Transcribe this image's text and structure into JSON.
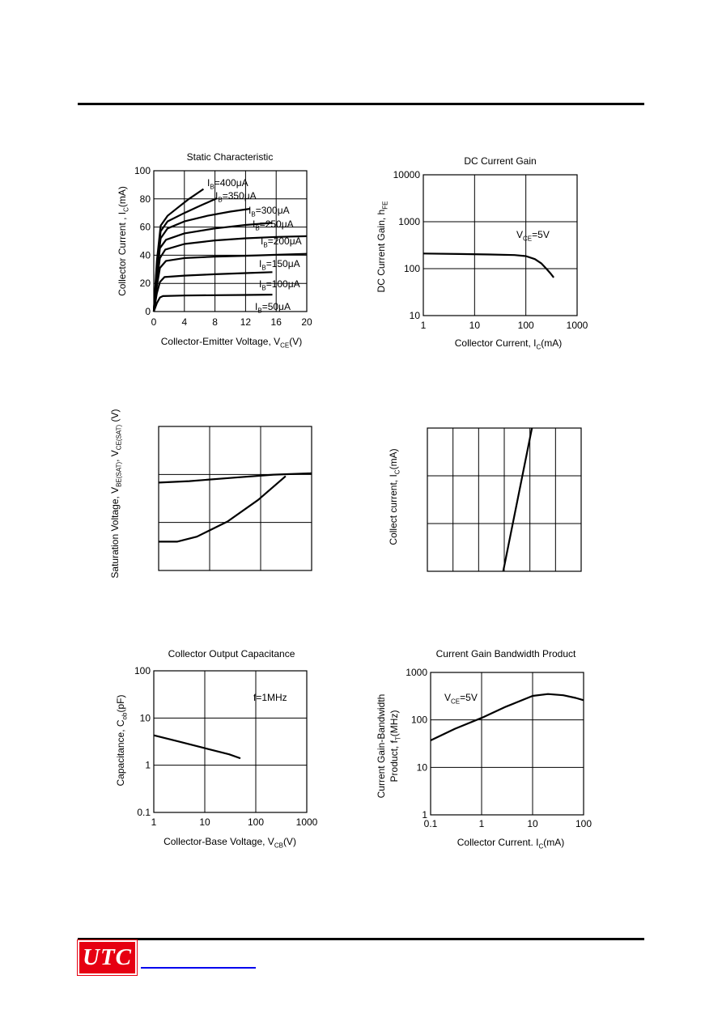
{
  "logo": {
    "text": "UTC"
  },
  "chart_data": [
    {
      "id": "static",
      "type": "line",
      "title": "Static Characteristic",
      "xlabel": "Collector-Emitter Voltage, V",
      "xlabel_sub": "CE",
      "xlabel_tail": "(V)",
      "ylabel": "Collector Current , I",
      "ylabel_sub": "C",
      "ylabel_tail": "(mA)",
      "xlim": [
        0,
        20
      ],
      "ylim": [
        0,
        100
      ],
      "x_ticks": [
        0,
        4,
        8,
        12,
        16,
        20
      ],
      "y_ticks": [
        0,
        20,
        40,
        60,
        80,
        100
      ],
      "grid": true,
      "series": [
        {
          "name": "I_B=50μA",
          "label_main": "I",
          "label_sub": "B",
          "label_tail": "=50μA",
          "points": [
            [
              0,
              0
            ],
            [
              0.4,
              6
            ],
            [
              0.8,
              10
            ],
            [
              1.2,
              11
            ],
            [
              4,
              11.4
            ],
            [
              8,
              11.6
            ],
            [
              12,
              11.8
            ],
            [
              15.5,
              12
            ]
          ]
        },
        {
          "name": "I_B=100μA",
          "label_main": "I",
          "label_sub": "B",
          "label_tail": "=100μA",
          "points": [
            [
              0,
              0
            ],
            [
              0.4,
              13
            ],
            [
              0.8,
              21
            ],
            [
              1.4,
              24.5
            ],
            [
              4,
              25.5
            ],
            [
              8,
              26.5
            ],
            [
              12,
              27.3
            ],
            [
              15.5,
              28
            ]
          ]
        },
        {
          "name": "I_B=150μA",
          "label_main": "I",
          "label_sub": "B",
          "label_tail": "=150μA",
          "points": [
            [
              0,
              0
            ],
            [
              0.4,
              18
            ],
            [
              0.8,
              31
            ],
            [
              1.6,
              36
            ],
            [
              4,
              38
            ],
            [
              8,
              39
            ],
            [
              12,
              39.6
            ],
            [
              16,
              40.3
            ],
            [
              20,
              41
            ]
          ]
        },
        {
          "name": "I_B=200μA",
          "label_main": "I",
          "label_sub": "B",
          "label_tail": "=200μA",
          "points": [
            [
              0,
              0
            ],
            [
              0.4,
              22
            ],
            [
              0.8,
              38
            ],
            [
              1.5,
              44
            ],
            [
              4,
              48
            ],
            [
              8,
              50.5
            ],
            [
              12,
              52
            ],
            [
              16,
              53
            ],
            [
              20,
              53.5
            ]
          ]
        },
        {
          "name": "I_B=250μA",
          "label_main": "I",
          "label_sub": "B",
          "label_tail": "=250μA",
          "points": [
            [
              0,
              0
            ],
            [
              0.4,
              26
            ],
            [
              0.8,
              45
            ],
            [
              1.6,
              51
            ],
            [
              4,
              55.5
            ],
            [
              8,
              59
            ],
            [
              12,
              61.5
            ],
            [
              15.5,
              63
            ]
          ]
        },
        {
          "name": "I_B=300μA",
          "label_main": "I",
          "label_sub": "B",
          "label_tail": "=300μA",
          "points": [
            [
              0,
              0
            ],
            [
              0.4,
              30
            ],
            [
              0.9,
              52
            ],
            [
              1.8,
              59
            ],
            [
              4,
              64
            ],
            [
              7,
              68
            ],
            [
              10,
              71
            ],
            [
              12.6,
              73
            ]
          ]
        },
        {
          "name": "I_B=350μA",
          "label_main": "I",
          "label_sub": "B",
          "label_tail": "=350μA",
          "points": [
            [
              0,
              0
            ],
            [
              0.4,
              33
            ],
            [
              0.9,
              57
            ],
            [
              1.8,
              64
            ],
            [
              4,
              70
            ],
            [
              6,
              75
            ],
            [
              8.3,
              80.5
            ]
          ]
        },
        {
          "name": "I_B=400μA",
          "label_main": "I",
          "label_sub": "B",
          "label_tail": "=400μA",
          "points": [
            [
              0,
              0
            ],
            [
              0.4,
              36
            ],
            [
              0.9,
              61
            ],
            [
              1.8,
              68
            ],
            [
              3.2,
              74
            ],
            [
              4.6,
              80
            ],
            [
              6.5,
              87
            ]
          ]
        }
      ]
    },
    {
      "id": "hfe",
      "type": "line",
      "title": "DC Current Gain",
      "xlabel": "Collector Current, I",
      "xlabel_sub": "C",
      "xlabel_tail": "(mA)",
      "ylabel": "DC Current Gain, h",
      "ylabel_sub": "FE",
      "ylabel_tail": "",
      "xscale": "log",
      "yscale": "log",
      "xlim": [
        1,
        1000
      ],
      "ylim": [
        10,
        10000
      ],
      "x_ticks": [
        "1",
        "10",
        "100",
        "1000"
      ],
      "y_ticks": [
        "10",
        "100",
        "1000",
        "10000"
      ],
      "annotation": {
        "main": "V",
        "sub": "CE",
        "tail": "=5V"
      },
      "series": [
        {
          "points": [
            [
              1,
              210
            ],
            [
              5,
              205
            ],
            [
              20,
              200
            ],
            [
              60,
              195
            ],
            [
              100,
              185
            ],
            [
              150,
              160
            ],
            [
              200,
              130
            ],
            [
              250,
              100
            ],
            [
              300,
              80
            ],
            [
              350,
              65
            ]
          ]
        }
      ]
    },
    {
      "id": "vsat",
      "type": "line",
      "title": "",
      "ylabel": "Saturation Voltage, V",
      "ylabel_sub1": "BE(SAT)",
      "ylabel_mid": ", V",
      "ylabel_sub2": "CE(SAT)",
      "ylabel_tail": " (V)",
      "x_divisions": 3,
      "y_divisions": 3,
      "series": [
        {
          "points": [
            [
              0,
              0.61
            ],
            [
              0.2,
              0.62
            ],
            [
              0.5,
              0.645
            ],
            [
              0.75,
              0.665
            ],
            [
              1,
              0.675
            ]
          ]
        },
        {
          "points": [
            [
              0,
              0.2
            ],
            [
              0.12,
              0.2
            ],
            [
              0.25,
              0.235
            ],
            [
              0.45,
              0.34
            ],
            [
              0.65,
              0.49
            ],
            [
              0.83,
              0.655
            ]
          ]
        }
      ]
    },
    {
      "id": "ic_curve",
      "type": "line",
      "title": "",
      "ylabel": "Collect current, I",
      "ylabel_sub": "C",
      "ylabel_tail": "(mA)",
      "x_divisions": 6,
      "y_divisions": 3,
      "series": [
        {
          "points": [
            [
              0.493,
              0
            ],
            [
              0.68,
              1
            ]
          ]
        }
      ]
    },
    {
      "id": "cob",
      "type": "line",
      "title": "Collector Output Capacitance",
      "xlabel": "Collector-Base Voltage, V",
      "xlabel_sub": "CB",
      "xlabel_tail": "(V)",
      "ylabel": "Capacitance, C",
      "ylabel_sub": "ob",
      "ylabel_tail": "(pF)",
      "xscale": "log",
      "yscale": "log",
      "xlim": [
        1,
        1000
      ],
      "ylim": [
        0.1,
        100
      ],
      "x_ticks": [
        "1",
        "10",
        "100",
        "1000"
      ],
      "y_ticks": [
        "0.1",
        "1",
        "10",
        "100"
      ],
      "annotation": {
        "main": "f=1MHz",
        "sub": "",
        "tail": ""
      },
      "series": [
        {
          "points": [
            [
              1,
              4.3
            ],
            [
              3,
              3.2
            ],
            [
              10,
              2.3
            ],
            [
              30,
              1.7
            ],
            [
              50,
              1.4
            ]
          ]
        }
      ]
    },
    {
      "id": "ft",
      "type": "line",
      "title": "Current Gain Bandwidth Product",
      "xlabel": "Collector Current. I",
      "xlabel_sub": "C",
      "xlabel_tail": "(mA)",
      "ylabel1": "Current Gain-Bandwidth",
      "ylabel2": "Product, f",
      "ylabel2_sub": "T",
      "ylabel2_tail": "(MHz)",
      "xscale": "log",
      "yscale": "log",
      "xlim": [
        0.1,
        100
      ],
      "ylim": [
        1,
        1000
      ],
      "x_ticks": [
        "0.1",
        "1",
        "10",
        "100"
      ],
      "y_ticks": [
        "1",
        "10",
        "100",
        "1000"
      ],
      "annotation": {
        "main": "V",
        "sub": "CE",
        "tail": "=5V"
      },
      "series": [
        {
          "points": [
            [
              0.1,
              37
            ],
            [
              0.3,
              65
            ],
            [
              1,
              110
            ],
            [
              3,
              190
            ],
            [
              10,
              320
            ],
            [
              20,
              350
            ],
            [
              40,
              330
            ],
            [
              70,
              290
            ],
            [
              100,
              260
            ]
          ]
        }
      ]
    }
  ]
}
